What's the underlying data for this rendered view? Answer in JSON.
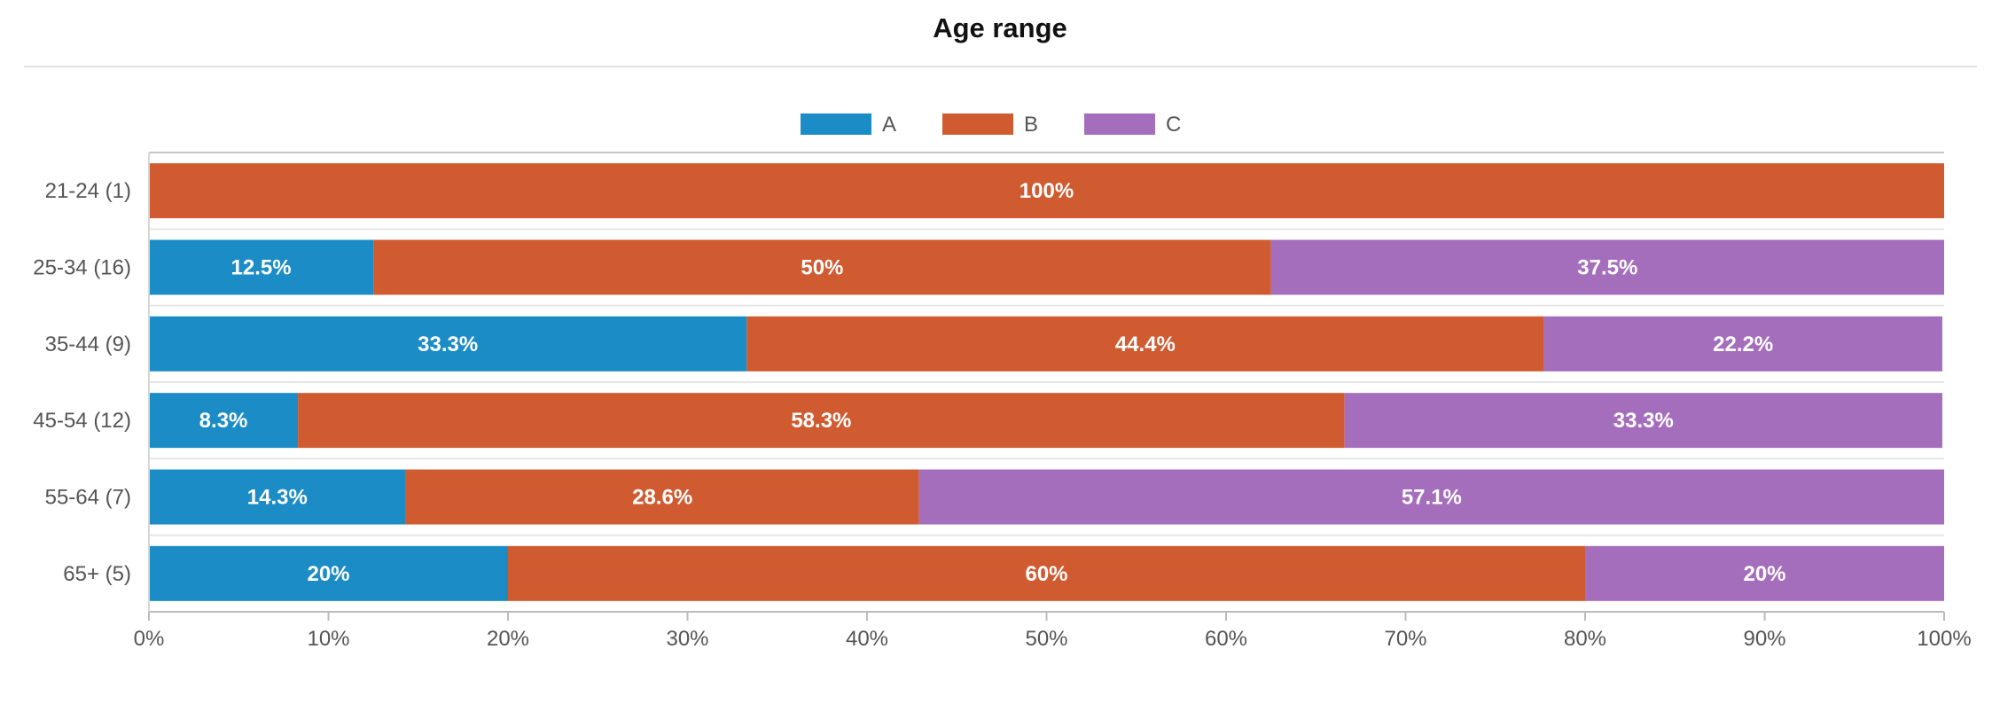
{
  "chart_data": {
    "type": "bar",
    "orientation": "horizontal",
    "stacked": "percent",
    "title": "Age range",
    "categories": [
      "21-24 (1)",
      "25-34 (16)",
      "35-44 (9)",
      "45-54 (12)",
      "55-64 (7)",
      "65+ (5)"
    ],
    "series": [
      {
        "name": "A",
        "color": "#1c8cc6",
        "values": [
          0,
          12.5,
          33.3,
          8.3,
          14.3,
          20
        ],
        "labels": [
          "",
          "12.5%",
          "33.3%",
          "8.3%",
          "14.3%",
          "20%"
        ]
      },
      {
        "name": "B",
        "color": "#d05b31",
        "values": [
          100,
          50,
          44.4,
          58.3,
          28.6,
          60
        ],
        "labels": [
          "100%",
          "50%",
          "44.4%",
          "58.3%",
          "28.6%",
          "60%"
        ]
      },
      {
        "name": "C",
        "color": "#a56ebd",
        "values": [
          0,
          37.5,
          22.2,
          33.3,
          57.1,
          20
        ],
        "labels": [
          "",
          "37.5%",
          "22.2%",
          "33.3%",
          "57.1%",
          "20%"
        ]
      }
    ],
    "xlim": [
      0,
      100
    ],
    "xticks": [
      "0%",
      "10%",
      "20%",
      "30%",
      "40%",
      "50%",
      "60%",
      "70%",
      "80%",
      "90%",
      "100%"
    ],
    "legend_position": "top-center",
    "grid": false
  }
}
